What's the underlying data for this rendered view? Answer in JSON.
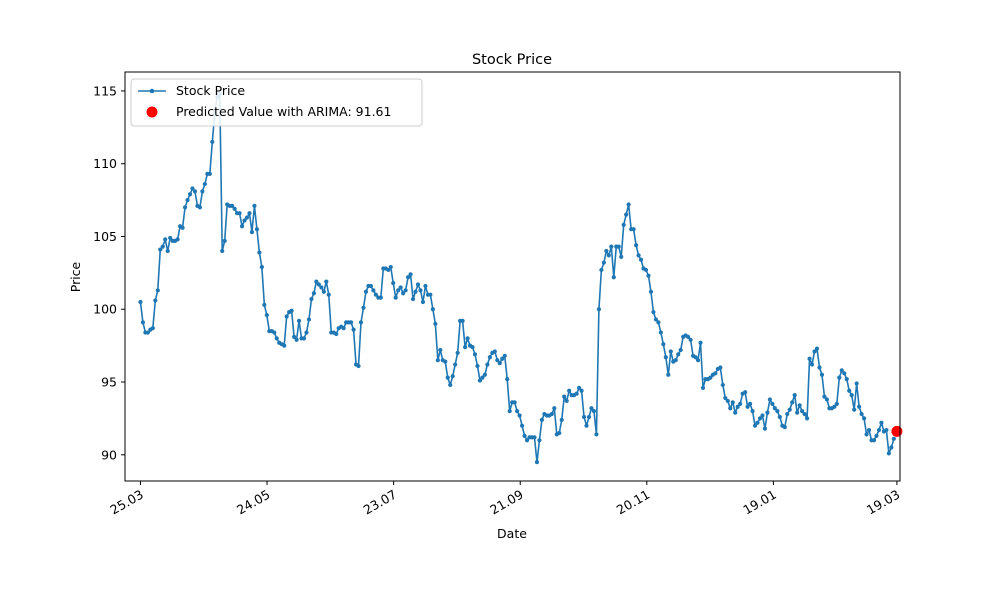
{
  "chart_data": {
    "type": "line",
    "title": "Stock Price",
    "xlabel": "Date",
    "ylabel": "Price",
    "x_ticks": [
      "25.03",
      "24.05",
      "23.07",
      "21.09",
      "20.11",
      "19.01",
      "19.03"
    ],
    "y_ticks": [
      90,
      95,
      100,
      105,
      110,
      115
    ],
    "ylim": [
      88.2,
      116.3
    ],
    "x_unit": "trading days from 25.03",
    "xlim": [
      -5,
      246
    ],
    "grid": false,
    "legend_position": "top-left",
    "series": [
      {
        "name": "Stock Price",
        "color": "#1f77b4",
        "values": [
          100.5,
          99.1,
          98.4,
          98.4,
          98.6,
          98.7,
          100.6,
          101.3,
          104.1,
          104.3,
          104.8,
          104.0,
          104.9,
          104.7,
          104.7,
          104.8,
          105.7,
          105.6,
          107.0,
          107.5,
          107.9,
          108.3,
          108.1,
          107.1,
          107.0,
          108.1,
          108.6,
          109.3,
          109.3,
          111.5,
          113.5,
          114.6,
          114.8,
          104.0,
          104.7,
          107.2,
          107.1,
          107.1,
          106.9,
          106.6,
          106.6,
          105.7,
          106.1,
          106.3,
          106.6,
          105.3,
          107.1,
          105.5,
          103.9,
          102.9,
          100.3,
          99.6,
          98.5,
          98.5,
          98.4,
          98.0,
          97.7,
          97.6,
          97.5,
          99.5,
          99.8,
          99.9,
          98.1,
          97.9,
          99.2,
          98.0,
          98.0,
          98.4,
          99.3,
          100.7,
          101.1,
          101.9,
          101.7,
          101.5,
          101.2,
          101.9,
          101.0,
          98.4,
          98.4,
          98.3,
          98.7,
          98.8,
          98.7,
          99.1,
          99.1,
          99.1,
          98.6,
          96.2,
          96.1,
          99.1,
          100.1,
          101.2,
          101.6,
          101.6,
          101.3,
          101.0,
          100.8,
          100.8,
          102.8,
          102.8,
          102.7,
          102.9,
          101.8,
          100.8,
          101.3,
          101.5,
          101.1,
          101.3,
          102.2,
          102.4,
          100.7,
          101.2,
          101.7,
          101.3,
          100.5,
          101.6,
          101.0,
          101.0,
          100.0,
          99.0,
          96.5,
          97.2,
          96.5,
          96.4,
          95.3,
          94.8,
          95.4,
          96.2,
          97.0,
          99.2,
          99.2,
          97.4,
          98.0,
          97.5,
          97.4,
          96.9,
          96.1,
          95.1,
          95.3,
          95.5,
          96.2,
          96.7,
          97.0,
          97.1,
          96.5,
          96.3,
          96.6,
          96.8,
          95.2,
          93.0,
          93.6,
          93.6,
          93.0,
          92.7,
          92.0,
          91.3,
          91.0,
          91.2,
          91.2,
          91.2,
          89.5,
          91.0,
          92.4,
          92.8,
          92.7,
          92.7,
          92.8,
          93.2,
          91.4,
          91.5,
          92.4,
          94.0,
          93.7,
          94.4,
          94.1,
          94.1,
          94.2,
          94.6,
          94.4,
          92.6,
          92.0,
          92.6,
          93.2,
          93.0,
          91.4,
          100.0,
          102.7,
          103.2,
          104.0,
          103.7,
          104.3,
          102.2,
          104.3,
          104.3,
          103.6,
          105.8,
          106.5,
          107.2,
          105.5,
          105.5,
          104.4,
          103.7,
          103.4,
          102.8,
          102.7,
          102.3,
          101.2,
          99.8,
          99.3,
          99.1,
          98.4,
          97.6,
          96.7,
          95.5,
          97.1,
          96.4,
          96.5,
          96.9,
          97.2,
          98.1,
          98.2,
          98.1,
          97.9,
          96.8,
          96.7,
          96.5,
          97.7,
          94.6,
          95.2,
          95.2,
          95.3,
          95.5,
          95.6,
          95.9,
          96.0,
          94.8,
          93.9,
          93.7,
          93.2,
          93.6,
          92.9,
          93.3,
          93.5,
          94.2,
          94.3,
          93.3,
          93.5,
          93.0,
          92.0,
          92.2,
          92.5,
          92.7,
          91.8,
          92.9,
          93.8,
          93.5,
          93.2,
          93.0,
          92.6,
          92.0,
          91.9,
          92.8,
          93.1,
          93.6,
          94.1,
          92.9,
          93.4,
          93.0,
          92.8,
          92.5,
          96.6,
          96.2,
          97.1,
          97.3,
          96.0,
          95.5,
          94.0,
          93.8,
          93.2,
          93.2,
          93.3,
          93.5,
          95.3,
          95.8,
          95.6,
          95.2,
          94.4,
          94.1,
          93.1,
          94.9,
          93.3,
          92.8,
          92.5,
          91.4,
          91.7,
          91.0,
          91.0,
          91.3,
          91.7,
          92.2,
          91.6,
          91.7,
          90.1,
          90.5,
          91.1
        ]
      },
      {
        "name": "Predicted Value with ARIMA: 91.61",
        "color": "#ff0000",
        "value": 91.61
      }
    ]
  }
}
